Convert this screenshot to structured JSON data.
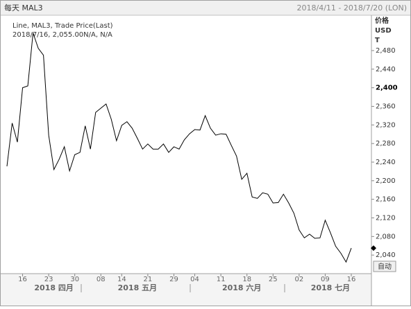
{
  "header": {
    "title": "每天 MAL3",
    "range": "2018/4/11 - 2018/7/20 (LON)"
  },
  "chart_data": {
    "type": "line",
    "legend": [
      "Line, MAL3, Trade Price(Last)",
      "2018/7/16, 2,055.00N/A, N/A"
    ],
    "axis_header": [
      "价格",
      "USD",
      "T"
    ],
    "button": "自动",
    "color": "#000000",
    "grid": false,
    "values": [
      2231,
      2324,
      2283,
      2400,
      2404,
      2518,
      2485,
      2470,
      2298,
      2224,
      2246,
      2273,
      2221,
      2256,
      2261,
      2318,
      2268,
      2347,
      2356,
      2365,
      2332,
      2286,
      2319,
      2327,
      2313,
      2291,
      2268,
      2279,
      2268,
      2268,
      2279,
      2261,
      2273,
      2268,
      2288,
      2301,
      2310,
      2309,
      2340,
      2313,
      2298,
      2301,
      2300,
      2276,
      2253,
      2203,
      2216,
      2165,
      2162,
      2174,
      2171,
      2152,
      2153,
      2171,
      2152,
      2130,
      2094,
      2077,
      2085,
      2076,
      2077,
      2115,
      2088,
      2059,
      2044,
      2025,
      2055
    ],
    "xlim": [
      0,
      66
    ],
    "xticks": [
      {
        "value": 3,
        "label": "16"
      },
      {
        "value": 8,
        "label": "23"
      },
      {
        "value": 13,
        "label": "30"
      },
      {
        "value": 18,
        "label": "08"
      },
      {
        "value": 22,
        "label": "14"
      },
      {
        "value": 27,
        "label": "21"
      },
      {
        "value": 32,
        "label": "29"
      },
      {
        "value": 36,
        "label": "04"
      },
      {
        "value": 41,
        "label": "11"
      },
      {
        "value": 46,
        "label": "18"
      },
      {
        "value": 51,
        "label": "25"
      },
      {
        "value": 56,
        "label": "02"
      },
      {
        "value": 61,
        "label": "09"
      },
      {
        "value": 66,
        "label": "16"
      }
    ],
    "month_labels": [
      {
        "value": 9,
        "label": "2018 四月"
      },
      {
        "value": 25,
        "label": "2018 五月"
      },
      {
        "value": 45,
        "label": "2018 六月"
      },
      {
        "value": 62,
        "label": "2018 七月"
      }
    ],
    "ylim": [
      2000,
      2556
    ],
    "yticks": [
      {
        "value": 2040,
        "label": "2,040"
      },
      {
        "value": 2080,
        "label": "2,080"
      },
      {
        "value": 2120,
        "label": "2,120"
      },
      {
        "value": 2160,
        "label": "2,160"
      },
      {
        "value": 2200,
        "label": "2,200"
      },
      {
        "value": 2240,
        "label": "2,240"
      },
      {
        "value": 2280,
        "label": "2,280"
      },
      {
        "value": 2320,
        "label": "2,320"
      },
      {
        "value": 2360,
        "label": "2,360"
      },
      {
        "value": 2400,
        "label": "2,400",
        "bold": true
      },
      {
        "value": 2440,
        "label": "2,440"
      },
      {
        "value": 2480,
        "label": "2,480"
      }
    ]
  }
}
